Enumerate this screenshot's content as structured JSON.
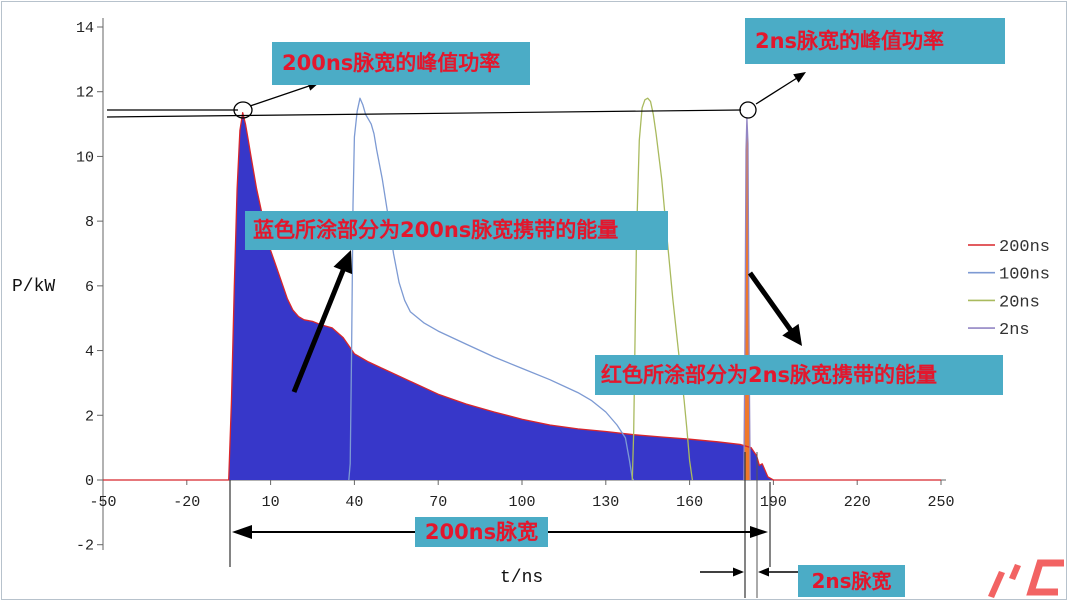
{
  "colors": {
    "annotation_box": "#4bacc6",
    "annotation_text": "#e3172d",
    "arrow": "#000000"
  },
  "chart_data": {
    "type": "line",
    "xlabel": "t/ns",
    "ylabel": "P/kW",
    "xlim": [
      -50,
      250
    ],
    "ylim": [
      -2,
      14
    ],
    "xticks": [
      -50,
      -20,
      10,
      40,
      70,
      100,
      130,
      160,
      190,
      220,
      250
    ],
    "yticks": [
      -2,
      0,
      2,
      4,
      6,
      8,
      10,
      12,
      14
    ],
    "grid": false,
    "legend_position": "right",
    "series": [
      {
        "name": "200ns",
        "color": "#d8262c",
        "fill": "#3737c9",
        "x": [
          -50,
          -5,
          -4,
          -3,
          -2,
          -1,
          0,
          1,
          2,
          3,
          4,
          5,
          6,
          7,
          8,
          10,
          12,
          14,
          16,
          18,
          20,
          22,
          25,
          28,
          32,
          36,
          40,
          45,
          50,
          55,
          60,
          70,
          80,
          90,
          100,
          110,
          120,
          130,
          140,
          150,
          160,
          170,
          178,
          182,
          184,
          185,
          186,
          187,
          188,
          190,
          250
        ],
        "y": [
          0,
          0,
          2.5,
          6.0,
          9.0,
          10.8,
          11.35,
          11.0,
          10.5,
          10.0,
          9.5,
          9.0,
          8.6,
          8.2,
          7.8,
          7.1,
          6.6,
          6.1,
          5.6,
          5.25,
          5.05,
          4.95,
          4.9,
          4.8,
          4.7,
          4.4,
          3.9,
          3.65,
          3.45,
          3.25,
          3.05,
          2.65,
          2.35,
          2.1,
          1.88,
          1.7,
          1.58,
          1.5,
          1.4,
          1.33,
          1.26,
          1.18,
          1.1,
          1.0,
          0.75,
          0.45,
          0.5,
          0.3,
          0.1,
          0,
          0
        ]
      },
      {
        "name": "100ns",
        "color": "#7d9ad3",
        "x": [
          38,
          38.5,
          39,
          39.5,
          40,
          41,
          42,
          43,
          44,
          45,
          46,
          47,
          48,
          50,
          52,
          54,
          56,
          58,
          60,
          65,
          70,
          80,
          90,
          100,
          110,
          120,
          125,
          130,
          134,
          137,
          138.5,
          139.5,
          140
        ],
        "y": [
          0,
          0.5,
          4.0,
          8.5,
          10.6,
          11.4,
          11.8,
          11.6,
          11.3,
          11.15,
          11.0,
          10.7,
          10.2,
          9.3,
          8.2,
          7.0,
          6.1,
          5.55,
          5.2,
          4.85,
          4.6,
          4.2,
          3.8,
          3.45,
          3.1,
          2.7,
          2.45,
          2.1,
          1.7,
          1.3,
          0.6,
          0.05,
          0
        ]
      },
      {
        "name": "20ns",
        "color": "#a9ba5e",
        "x": [
          139.5,
          140,
          140.5,
          141,
          142,
          143,
          144,
          145,
          146,
          147,
          148,
          150,
          152,
          154,
          156,
          158,
          159,
          160,
          161
        ],
        "y": [
          0,
          1.5,
          4.5,
          7.5,
          10.5,
          11.5,
          11.75,
          11.8,
          11.7,
          11.3,
          10.7,
          9.3,
          7.4,
          5.6,
          4.0,
          2.5,
          1.6,
          0.6,
          0
        ]
      },
      {
        "name": "2ns",
        "color": "#9386c4",
        "fill": "#f0782a",
        "x": [
          179.4,
          179.8,
          180.2,
          180.5,
          180.9,
          181.3,
          181.7
        ],
        "y": [
          0,
          4.0,
          10.2,
          11.2,
          10.4,
          4.0,
          0
        ]
      }
    ],
    "annotations": {
      "peak_200ns": "200ns脉宽的峰值功率",
      "peak_2ns": "2ns脉宽的峰值功率",
      "energy_200ns": "蓝色所涂部分为200ns脉宽携带的能量",
      "energy_2ns": "红色所涂部分为2ns脉宽携带的能量",
      "width_200ns": "200ns脉宽",
      "width_2ns": "2ns脉宽"
    }
  }
}
